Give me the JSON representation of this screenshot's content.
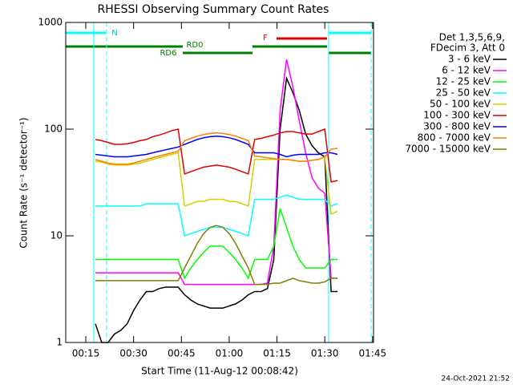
{
  "chart_data": {
    "type": "line",
    "title": "RHESSI Observing Summary Count Rates",
    "xlabel": "Start Time (11-Aug-12 00:08:42)",
    "ylabel": "Count Rate (s⁻¹ detector⁻¹)",
    "footer": "24-Oct-2021 21:52",
    "legend_header": [
      "Det 1,3,5,6,9,",
      "FDecim 3, Att 0"
    ],
    "flags": [
      "N",
      "RD0",
      "RD6",
      "F"
    ],
    "ylog": true,
    "xlim": [
      8.7,
      105.3
    ],
    "ylim": [
      1,
      1000
    ],
    "yticks": [
      1,
      10,
      100,
      1000
    ],
    "xticks": [
      {
        "value": 15,
        "label": "00:15"
      },
      {
        "value": 30,
        "label": "00:30"
      },
      {
        "value": 45,
        "label": "00:45"
      },
      {
        "value": 60,
        "label": "01:00"
      },
      {
        "value": 75,
        "label": "01:15"
      },
      {
        "value": 90,
        "label": "01:30"
      },
      {
        "value": 105,
        "label": "01:45"
      }
    ],
    "x": [
      18,
      20,
      22,
      24,
      26,
      28,
      30,
      32,
      34,
      36,
      38,
      40,
      42,
      44,
      46,
      48,
      50,
      52,
      54,
      56,
      58,
      60,
      62,
      64,
      66,
      68,
      70,
      72,
      74,
      76,
      78,
      80,
      82,
      84,
      86,
      88,
      90,
      92,
      94
    ],
    "series": [
      {
        "name": "3 - 6 keV",
        "color": "#000000",
        "values": [
          1.5,
          1,
          1,
          1.2,
          1.3,
          1.5,
          2,
          2.5,
          3,
          3,
          3.2,
          3.3,
          3.3,
          3.3,
          2.8,
          2.5,
          2.3,
          2.2,
          2.1,
          2.1,
          2.1,
          2.2,
          2.3,
          2.5,
          2.8,
          3,
          3,
          3.2,
          6,
          100,
          300,
          220,
          150,
          90,
          70,
          60,
          55,
          3,
          3
        ]
      },
      {
        "name": "6 - 12 keV",
        "color": "#ff00ff",
        "values": [
          4.5,
          4.5,
          4.5,
          4.5,
          4.5,
          4.5,
          4.5,
          4.5,
          4.5,
          4.5,
          4.5,
          4.5,
          4.5,
          4.5,
          3.5,
          3.5,
          3.5,
          3.5,
          3.5,
          3.5,
          3.5,
          3.5,
          3.5,
          3.5,
          3.5,
          3.5,
          3.5,
          3.6,
          8,
          150,
          450,
          250,
          120,
          60,
          35,
          28,
          25,
          4,
          4
        ]
      },
      {
        "name": "12 - 25 keV",
        "color": "#00ff00",
        "values": [
          6,
          6,
          6,
          6,
          6,
          6,
          6,
          6,
          6,
          6,
          6,
          6,
          6,
          6,
          4,
          5,
          6,
          7,
          8,
          8,
          8,
          7,
          6,
          5,
          4,
          6,
          6,
          6,
          8,
          18,
          12,
          8,
          6,
          5,
          5,
          5,
          5,
          6,
          6
        ]
      },
      {
        "name": "25 - 50 keV",
        "color": "#00ffff",
        "values": [
          19,
          19,
          19,
          19,
          19,
          19,
          19,
          19,
          20,
          20,
          20,
          20,
          20,
          20,
          10,
          10.5,
          11,
          11.5,
          12,
          12,
          12,
          11.5,
          11,
          10.5,
          10,
          22,
          22,
          22,
          22,
          23,
          24,
          23,
          22,
          22,
          22,
          22,
          22,
          19,
          20
        ]
      },
      {
        "name": "50 - 100 keV",
        "color": "#d0d000",
        "values": [
          50,
          49,
          47,
          46,
          46,
          46,
          47,
          48,
          50,
          52,
          54,
          56,
          58,
          60,
          19,
          20,
          21,
          21,
          22,
          22,
          22,
          21,
          21,
          20,
          19,
          52,
          52,
          52,
          52,
          52,
          52,
          51,
          50,
          50,
          51,
          52,
          55,
          16,
          17
        ]
      },
      {
        "name": "100 - 300 keV",
        "color": "#e00000",
        "values": [
          80,
          78,
          75,
          72,
          72,
          73,
          75,
          78,
          80,
          85,
          88,
          92,
          97,
          100,
          38,
          40,
          42,
          44,
          45,
          46,
          45,
          44,
          42,
          40,
          38,
          80,
          82,
          85,
          88,
          92,
          95,
          95,
          92,
          90,
          90,
          95,
          100,
          32,
          33
        ]
      },
      {
        "name": "300 - 800 keV",
        "color": "#0000ff",
        "values": [
          58,
          57,
          56,
          55,
          55,
          55,
          56,
          57,
          58,
          60,
          62,
          64,
          66,
          68,
          72,
          76,
          80,
          83,
          85,
          86,
          85,
          83,
          80,
          76,
          72,
          60,
          60,
          60,
          60,
          58,
          55,
          57,
          58,
          58,
          58,
          58,
          60,
          60,
          58
        ]
      },
      {
        "name": "800 - 7000 keV",
        "color": "#ff8000",
        "values": [
          52,
          50,
          48,
          47,
          47,
          47,
          48,
          50,
          52,
          54,
          56,
          58,
          60,
          62,
          78,
          82,
          86,
          89,
          91,
          92,
          91,
          89,
          86,
          82,
          78,
          56,
          55,
          54,
          53,
          52,
          52,
          51,
          50,
          50,
          51,
          52,
          55,
          65,
          66
        ]
      },
      {
        "name": "7000 - 15000 keV",
        "color": "#808000",
        "values": [
          3.8,
          3.8,
          3.8,
          3.8,
          3.8,
          3.8,
          3.8,
          3.8,
          3.8,
          3.8,
          3.8,
          3.8,
          3.8,
          3.8,
          5,
          6.5,
          8.5,
          10.5,
          12,
          12.5,
          12,
          10.5,
          8.5,
          6.5,
          5,
          3.5,
          3.5,
          3.5,
          3.6,
          3.6,
          3.8,
          4,
          3.8,
          3.7,
          3.6,
          3.6,
          3.7,
          4,
          4
        ]
      }
    ]
  }
}
